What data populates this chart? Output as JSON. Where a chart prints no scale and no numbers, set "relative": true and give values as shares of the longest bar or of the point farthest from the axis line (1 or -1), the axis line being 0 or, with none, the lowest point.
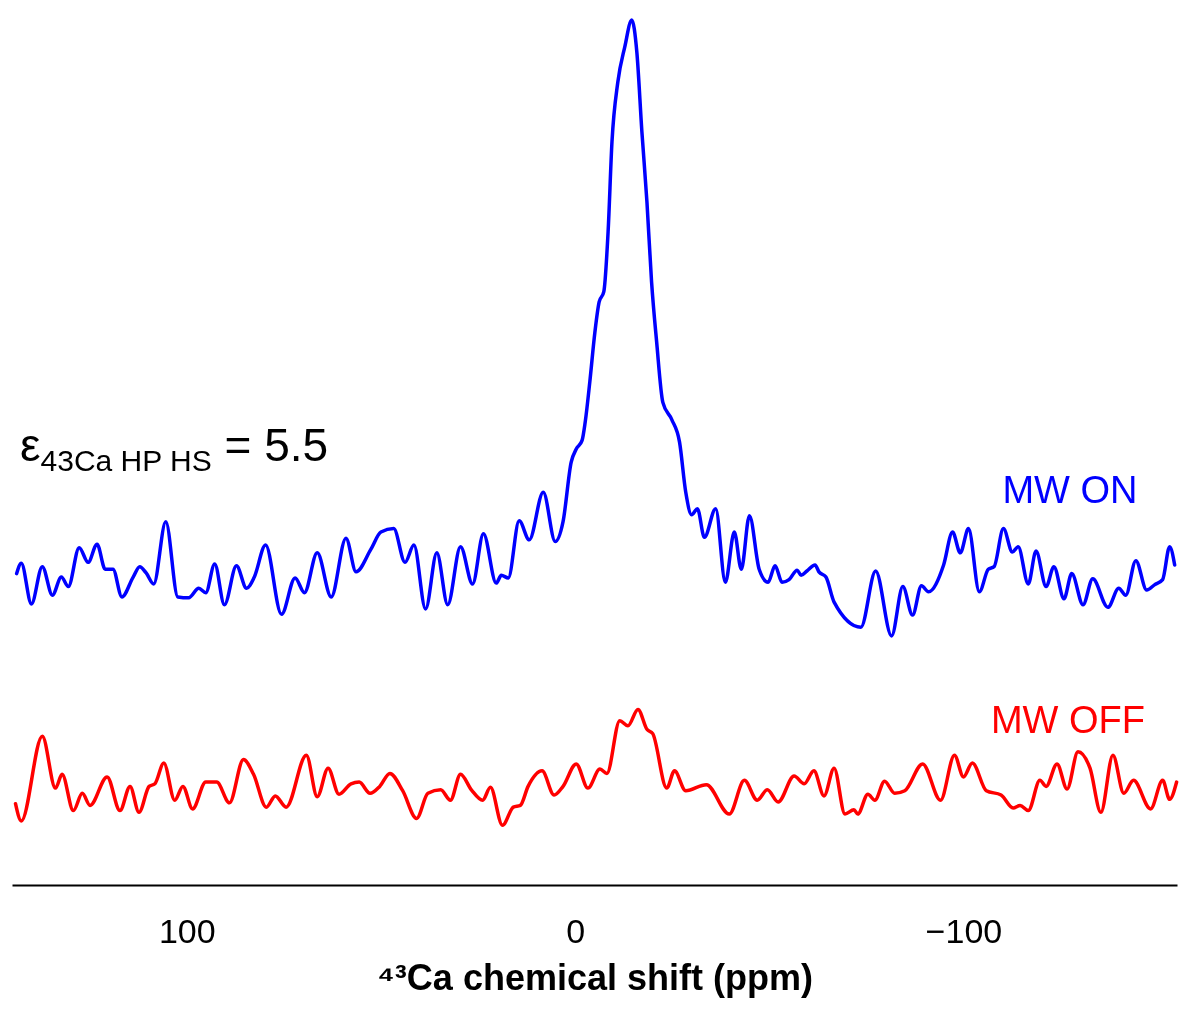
{
  "chart_data": {
    "type": "line",
    "relative": true,
    "xlabel": "⁴³Ca chemical shift (ppm)",
    "annotations": [
      "ε$_{43Ca HP HS}$ = 5.5"
    ],
    "xlim": [
      145,
      -155
    ],
    "xticks": [
      100,
      0,
      -100
    ],
    "marker": "none",
    "line_style": "solid",
    "series": [
      {
        "name": "MW ON",
        "color": "#0000ff",
        "x": [
          143.8,
          142.6,
          140.0,
          137.2,
          134.6,
          132.3,
          130.5,
          127.7,
          125.4,
          123.1,
          121.0,
          119.0,
          116.7,
          113.8,
          112.1,
          110.5,
          108.5,
          105.4,
          102.3,
          99.5,
          96.9,
          95.1,
          92.8,
          90.3,
          87.2,
          84.6,
          82.6,
          79.7,
          75.6,
          72.1,
          69.7,
          66.4,
          62.8,
          59.0,
          56.4,
          52.6,
          50.0,
          46.7,
          43.8,
          41.5,
          38.5,
          35.6,
          32.8,
          29.5,
          26.4,
          23.6,
          20.3,
          19.0,
          17.2,
          14.4,
          11.8,
          8.2,
          5.1,
          3.1,
          1.0,
          -0.3,
          -1.8,
          -2.6,
          -3.8,
          -5.1,
          -6.2,
          -7.4,
          -8.5,
          -9.5,
          -11.0,
          -12.8,
          -14.6,
          -15.9,
          -17.2,
          -18.5,
          -19.7,
          -21.0,
          -22.6,
          -24.9,
          -26.9,
          -28.5,
          -30.0,
          -31.5,
          -33.3,
          -36.2,
          -38.7,
          -41.0,
          -42.8,
          -44.9,
          -47.4,
          -49.7,
          -51.5,
          -53.3,
          -55.1,
          -57.2,
          -58.2,
          -59.7,
          -61.8,
          -62.8,
          -64.6,
          -66.7,
          -73.6,
          -77.4,
          -81.5,
          -84.4,
          -86.9,
          -89.2,
          -91.0,
          -94.9,
          -97.2,
          -99.2,
          -101.3,
          -104.1,
          -106.4,
          -107.9,
          -110.3,
          -112.6,
          -114.1,
          -116.7,
          -118.7,
          -121.3,
          -123.3,
          -125.9,
          -127.9,
          -130.8,
          -133.3,
          -137.2,
          -140.0,
          -141.8,
          -144.4,
          -147.2,
          -149.2,
          -151.3,
          -153.1,
          -154.4
        ],
        "values": [
          0.36,
          0.372,
          0.325,
          0.368,
          0.335,
          0.356,
          0.345,
          0.39,
          0.373,
          0.394,
          0.365,
          0.365,
          0.333,
          0.356,
          0.368,
          0.361,
          0.348,
          0.42,
          0.333,
          0.332,
          0.343,
          0.338,
          0.371,
          0.324,
          0.369,
          0.343,
          0.356,
          0.393,
          0.313,
          0.355,
          0.338,
          0.384,
          0.333,
          0.401,
          0.362,
          0.388,
          0.408,
          0.412,
          0.373,
          0.393,
          0.319,
          0.384,
          0.324,
          0.391,
          0.348,
          0.406,
          0.349,
          0.358,
          0.355,
          0.421,
          0.399,
          0.454,
          0.397,
          0.42,
          0.489,
          0.504,
          0.514,
          0.535,
          0.582,
          0.639,
          0.674,
          0.686,
          0.755,
          0.859,
          0.928,
          0.969,
          1,
          0.963,
          0.871,
          0.79,
          0.697,
          0.628,
          0.558,
          0.538,
          0.512,
          0.454,
          0.428,
          0.435,
          0.402,
          0.435,
          0.35,
          0.408,
          0.365,
          0.427,
          0.365,
          0.35,
          0.369,
          0.35,
          0.353,
          0.364,
          0.358,
          0.363,
          0.37,
          0.362,
          0.356,
          0.327,
          0.298,
          0.363,
          0.288,
          0.345,
          0.312,
          0.346,
          0.339,
          0.37,
          0.408,
          0.384,
          0.412,
          0.339,
          0.365,
          0.368,
          0.412,
          0.385,
          0.391,
          0.348,
          0.386,
          0.345,
          0.368,
          0.331,
          0.36,
          0.324,
          0.354,
          0.321,
          0.343,
          0.335,
          0.375,
          0.341,
          0.347,
          0.353,
          0.391,
          0.37
        ]
      },
      {
        "name": "MW OFF",
        "color": "#ff0000",
        "x": [
          144.1,
          142.6,
          137.2,
          133.8,
          132.1,
          129.2,
          126.9,
          124.9,
          120.5,
          117.2,
          114.6,
          112.3,
          109.7,
          108.2,
          105.9,
          103.1,
          101.0,
          98.5,
          95.1,
          92.3,
          89.0,
          85.4,
          82.8,
          79.5,
          77.2,
          74.4,
          69.2,
          66.4,
          63.6,
          60.8,
          57.7,
          55.6,
          52.8,
          50.3,
          47.7,
          44.4,
          40.8,
          37.9,
          34.6,
          32.1,
          29.5,
          26.7,
          23.8,
          21.8,
          18.7,
          15.9,
          14.1,
          12.1,
          8.5,
          5.4,
          3.1,
          -0.3,
          -3.3,
          -6.4,
          -8.2,
          -11.5,
          -13.6,
          -16.2,
          -18.5,
          -20.0,
          -23.6,
          -25.6,
          -28.5,
          -33.8,
          -39.7,
          -43.6,
          -46.9,
          -49.5,
          -52.3,
          -56.4,
          -59.0,
          -61.5,
          -64.1,
          -66.7,
          -69.5,
          -71.8,
          -72.8,
          -75.4,
          -77.2,
          -79.7,
          -82.3,
          -84.9,
          -89.5,
          -94.1,
          -97.7,
          -100.0,
          -102.3,
          -105.9,
          -109.7,
          -112.8,
          -114.6,
          -116.7,
          -119.7,
          -121.3,
          -124.1,
          -126.7,
          -129.5,
          -132.6,
          -135.4,
          -138.5,
          -141.3,
          -143.8,
          -148.2,
          -151.3,
          -153.1,
          -154.9
        ],
        "values": [
          0.094,
          0.074,
          0.172,
          0.112,
          0.128,
          0.086,
          0.106,
          0.092,
          0.125,
          0.086,
          0.114,
          0.084,
          0.114,
          0.117,
          0.141,
          0.098,
          0.114,
          0.088,
          0.119,
          0.119,
          0.095,
          0.145,
          0.128,
          0.09,
          0.103,
          0.09,
          0.15,
          0.102,
          0.135,
          0.105,
          0.117,
          0.119,
          0.106,
          0.114,
          0.129,
          0.109,
          0.077,
          0.106,
          0.11,
          0.098,
          0.128,
          0.11,
          0.098,
          0.113,
          0.069,
          0.09,
          0.092,
          0.114,
          0.132,
          0.104,
          0.114,
          0.14,
          0.112,
          0.134,
          0.129,
          0.19,
          0.184,
          0.203,
          0.18,
          0.175,
          0.112,
          0.132,
          0.109,
          0.116,
          0.082,
          0.121,
          0.098,
          0.11,
          0.096,
          0.126,
          0.117,
          0.132,
          0.103,
          0.135,
          0.082,
          0.087,
          0.082,
          0.105,
          0.098,
          0.12,
          0.106,
          0.109,
          0.14,
          0.098,
          0.15,
          0.125,
          0.141,
          0.109,
          0.104,
          0.089,
          0.092,
          0.086,
          0.121,
          0.114,
          0.14,
          0.111,
          0.154,
          0.135,
          0.084,
          0.15,
          0.106,
          0.121,
          0.088,
          0.121,
          0.099,
          0.119
        ]
      }
    ]
  }
}
